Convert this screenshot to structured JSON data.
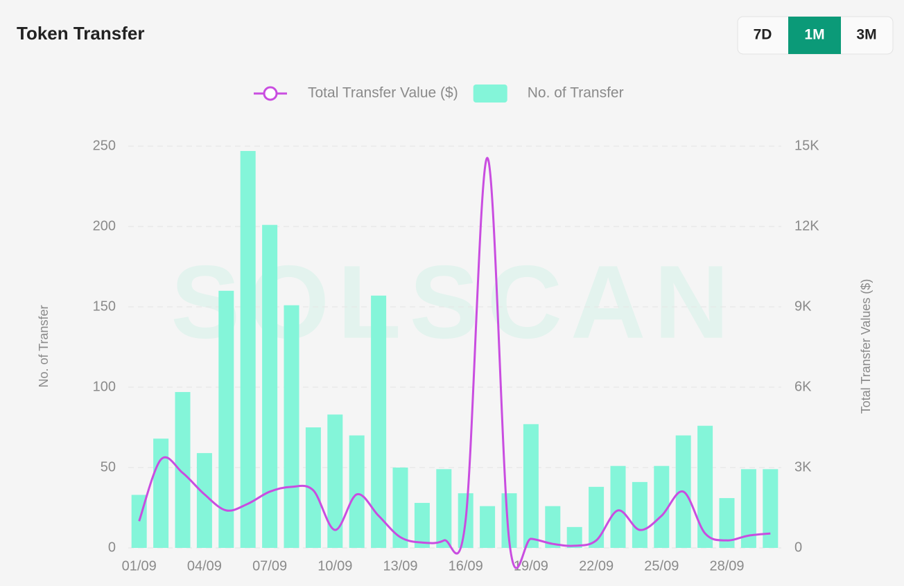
{
  "chart_data": {
    "type": "bar-line",
    "title": "Token Transfer",
    "buttons": [
      "7D",
      "1M",
      "3M"
    ],
    "watermark": "SOLSCAN",
    "categories": [
      "01/09",
      null,
      null,
      "04/09",
      null,
      null,
      "07/09",
      null,
      null,
      "10/09",
      null,
      null,
      "13/09",
      null,
      null,
      "16/09",
      null,
      null,
      "19/09",
      null,
      null,
      "22/09",
      null,
      null,
      "25/09",
      null,
      null,
      "28/09",
      null,
      null
    ],
    "series": [
      {
        "name": "Total Transfer Value ($)",
        "type": "line",
        "axis": "y2",
        "color": "#c94de0",
        "values": [
          1000,
          3300,
          2800,
          2000,
          1400,
          1650,
          2100,
          2280,
          2150,
          670,
          2000,
          1200,
          400,
          200,
          280,
          1050,
          14560,
          280,
          340,
          150,
          80,
          280,
          1400,
          670,
          1200,
          2100,
          540,
          280,
          460,
          540
        ]
      },
      {
        "name": "No. of Transfer",
        "type": "bar",
        "axis": "y",
        "color": "#84f5d9",
        "values": [
          33,
          68,
          97,
          59,
          160,
          247,
          201,
          151,
          75,
          83,
          70,
          157,
          50,
          28,
          49,
          34,
          26,
          34,
          77,
          26,
          13,
          38,
          51,
          41,
          51,
          70,
          76,
          31,
          49,
          49
        ]
      }
    ],
    "ylabel": "No. of Transfer",
    "y2label": "Total Transfer Values ($)",
    "ylim": [
      0,
      250
    ],
    "yticks": [
      0,
      50,
      100,
      150,
      200,
      250
    ],
    "y2lim": [
      0,
      15000
    ],
    "y2ticks": [
      0,
      {
        "value": 3000,
        "label": "3K"
      },
      {
        "value": 6000,
        "label": "6K"
      },
      {
        "value": 9000,
        "label": "9K"
      },
      {
        "value": 12000,
        "label": "12K"
      },
      {
        "value": 15000,
        "label": "15K"
      }
    ],
    "grid": true,
    "legend": "top"
  }
}
